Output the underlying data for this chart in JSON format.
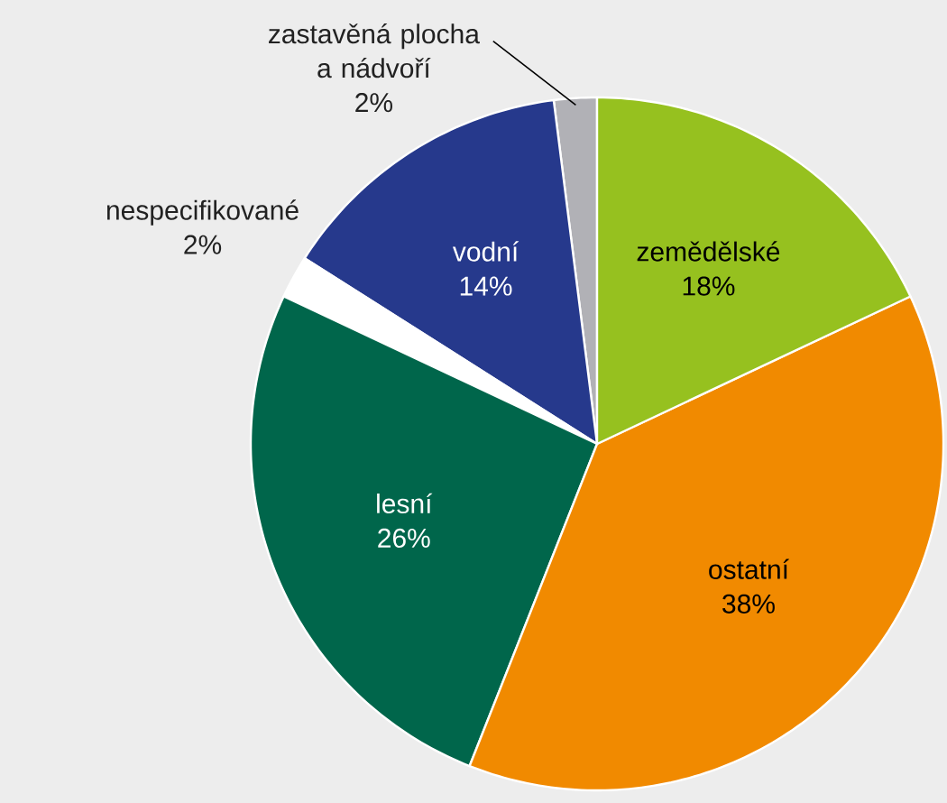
{
  "chart_data": {
    "type": "pie",
    "categories": [
      "zastavěná plocha a nádvoří",
      "vodní",
      "nespecifikované",
      "lesní",
      "ostatní",
      "zemědělské"
    ],
    "values": [
      2,
      14,
      2,
      26,
      38,
      18
    ],
    "value_labels": [
      "2%",
      "14%",
      "2%",
      "26%",
      "38%",
      "18%"
    ],
    "colors": [
      "#b1b1b6",
      "#26398c",
      "#ffffff",
      "#00664b",
      "#f18a00",
      "#96c11f"
    ]
  }
}
